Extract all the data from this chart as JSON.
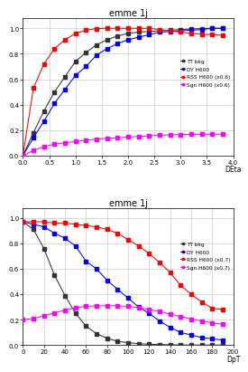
{
  "title": "emme 1j",
  "top": {
    "xlabel": "DEta",
    "xlim": [
      0,
      4
    ],
    "ylim": [
      0,
      1.08
    ],
    "xticks": [
      0,
      0.5,
      1,
      1.5,
      2,
      2.5,
      3,
      3.5,
      4
    ],
    "yticks": [
      0,
      0.2,
      0.4,
      0.6,
      0.8,
      1
    ],
    "series": [
      {
        "label": "TT bkg",
        "color": "#333333",
        "x": [
          0.0,
          0.2,
          0.4,
          0.6,
          0.8,
          1.0,
          1.2,
          1.4,
          1.6,
          1.8,
          2.0,
          2.2,
          2.4,
          2.6,
          2.8,
          3.0,
          3.2,
          3.4,
          3.6,
          3.8
        ],
        "y": [
          0.0,
          0.18,
          0.35,
          0.5,
          0.62,
          0.74,
          0.81,
          0.87,
          0.91,
          0.94,
          0.96,
          0.97,
          0.975,
          0.98,
          0.985,
          0.99,
          0.995,
          0.998,
          1.0,
          1.0
        ]
      },
      {
        "label": "DY H600",
        "color": "#0000ff",
        "x": [
          0.0,
          0.2,
          0.4,
          0.6,
          0.8,
          1.0,
          1.2,
          1.4,
          1.6,
          1.8,
          2.0,
          2.2,
          2.4,
          2.6,
          2.8,
          3.0,
          3.2,
          3.4,
          3.6,
          3.8
        ],
        "y": [
          0.0,
          0.14,
          0.27,
          0.41,
          0.52,
          0.63,
          0.7,
          0.79,
          0.84,
          0.88,
          0.91,
          0.93,
          0.95,
          0.97,
          0.975,
          0.98,
          0.985,
          0.99,
          1.0,
          1.0
        ]
      },
      {
        "label": "RSS H600 (x0.6)",
        "color": "#ff0000",
        "x": [
          0.0,
          0.2,
          0.4,
          0.6,
          0.8,
          1.0,
          1.2,
          1.4,
          1.6,
          1.8,
          2.0,
          2.2,
          2.4,
          2.6,
          2.8,
          3.0,
          3.2,
          3.4,
          3.6,
          3.8
        ],
        "y": [
          0.0,
          0.53,
          0.72,
          0.84,
          0.91,
          0.96,
          0.985,
          0.998,
          1.0,
          1.0,
          1.0,
          1.0,
          1.0,
          0.99,
          0.98,
          0.97,
          0.96,
          0.955,
          0.95,
          0.945
        ]
      },
      {
        "label": "Sgn H600 (x0.6)",
        "color": "#ff00ff",
        "x": [
          0.0,
          0.2,
          0.4,
          0.6,
          0.8,
          1.0,
          1.2,
          1.4,
          1.6,
          1.8,
          2.0,
          2.2,
          2.4,
          2.6,
          2.8,
          3.0,
          3.2,
          3.4,
          3.6,
          3.8
        ],
        "y": [
          0.0,
          0.04,
          0.07,
          0.09,
          0.1,
          0.11,
          0.12,
          0.13,
          0.135,
          0.14,
          0.145,
          0.15,
          0.155,
          0.16,
          0.163,
          0.165,
          0.167,
          0.168,
          0.168,
          0.168
        ]
      }
    ]
  },
  "bottom": {
    "xlabel": "DpT",
    "xlim": [
      0,
      200
    ],
    "ylim": [
      0,
      1.08
    ],
    "xticks": [
      0,
      20,
      40,
      60,
      80,
      100,
      120,
      140,
      160,
      180,
      200
    ],
    "yticks": [
      0,
      0.2,
      0.4,
      0.6,
      0.8,
      1
    ],
    "series": [
      {
        "label": "TT bkg",
        "color": "#333333",
        "x": [
          0,
          10,
          20,
          30,
          40,
          50,
          60,
          70,
          80,
          90,
          100,
          110,
          120,
          130,
          140,
          150,
          160,
          170,
          180,
          190
        ],
        "y": [
          0.97,
          0.91,
          0.76,
          0.55,
          0.39,
          0.25,
          0.15,
          0.09,
          0.055,
          0.03,
          0.02,
          0.012,
          0.007,
          0.005,
          0.003,
          0.002,
          0.001,
          0.001,
          0.001,
          0.001
        ]
      },
      {
        "label": "DY H600",
        "color": "#0000ff",
        "x": [
          0,
          10,
          20,
          30,
          40,
          50,
          60,
          70,
          80,
          90,
          100,
          110,
          120,
          130,
          140,
          150,
          160,
          170,
          180,
          190
        ],
        "y": [
          0.97,
          0.95,
          0.93,
          0.88,
          0.84,
          0.78,
          0.66,
          0.6,
          0.51,
          0.44,
          0.37,
          0.3,
          0.25,
          0.19,
          0.14,
          0.1,
          0.08,
          0.06,
          0.05,
          0.04
        ]
      },
      {
        "label": "RSS H600 (x0.7)",
        "color": "#ff0000",
        "x": [
          0,
          10,
          20,
          30,
          40,
          50,
          60,
          70,
          80,
          90,
          100,
          110,
          120,
          130,
          140,
          150,
          160,
          170,
          180,
          190
        ],
        "y": [
          0.97,
          0.97,
          0.97,
          0.96,
          0.96,
          0.95,
          0.94,
          0.93,
          0.91,
          0.88,
          0.83,
          0.78,
          0.72,
          0.65,
          0.57,
          0.47,
          0.4,
          0.34,
          0.29,
          0.28
        ]
      },
      {
        "label": "Sgn H600 (x0.7)",
        "color": "#ff00ff",
        "x": [
          0,
          10,
          20,
          30,
          40,
          50,
          60,
          70,
          80,
          90,
          100,
          110,
          120,
          130,
          140,
          150,
          160,
          170,
          180,
          190
        ],
        "y": [
          0.2,
          0.21,
          0.23,
          0.255,
          0.275,
          0.295,
          0.305,
          0.31,
          0.31,
          0.31,
          0.305,
          0.295,
          0.28,
          0.265,
          0.245,
          0.225,
          0.205,
          0.19,
          0.175,
          0.165
        ]
      }
    ]
  },
  "bg_color": "#ffffff",
  "plot_bg_color": "#ffffff",
  "grid_color": "#cccccc",
  "title_fontsize": 7,
  "label_fontsize": 5.5,
  "tick_fontsize": 5,
  "legend_fontsize": 4.2,
  "marker": "s",
  "markersize": 2.2,
  "linewidth": 0.75
}
